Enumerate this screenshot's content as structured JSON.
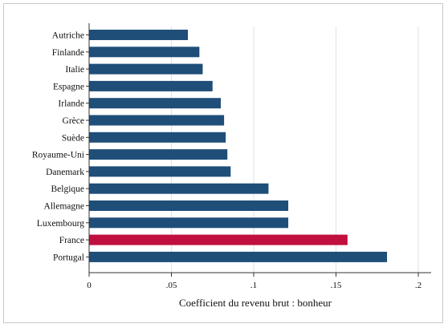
{
  "chart_data": {
    "type": "bar",
    "orientation": "horizontal",
    "categories": [
      "Autriche",
      "Finlande",
      "Italie",
      "Espagne",
      "Irlande",
      "Grèce",
      "Suède",
      "Royaume-Uni",
      "Danemark",
      "Belgique",
      "Allemagne",
      "Luxembourg",
      "France",
      "Portugal"
    ],
    "values": [
      0.06,
      0.067,
      0.069,
      0.075,
      0.08,
      0.082,
      0.083,
      0.084,
      0.086,
      0.109,
      0.121,
      0.121,
      0.157,
      0.181
    ],
    "highlight": "France",
    "colors": {
      "default": "#1f4e79",
      "highlight": "#c0103f"
    },
    "xlabel": "Coefficient du revenu brut : bonheur",
    "xlim": [
      0,
      0.2
    ],
    "xticks": [
      0,
      0.05,
      0.1,
      0.15,
      0.2
    ],
    "xtick_labels": [
      "0",
      ".05",
      ".1",
      ".15",
      ".2"
    ],
    "grid": "vertical",
    "legend": "none"
  }
}
